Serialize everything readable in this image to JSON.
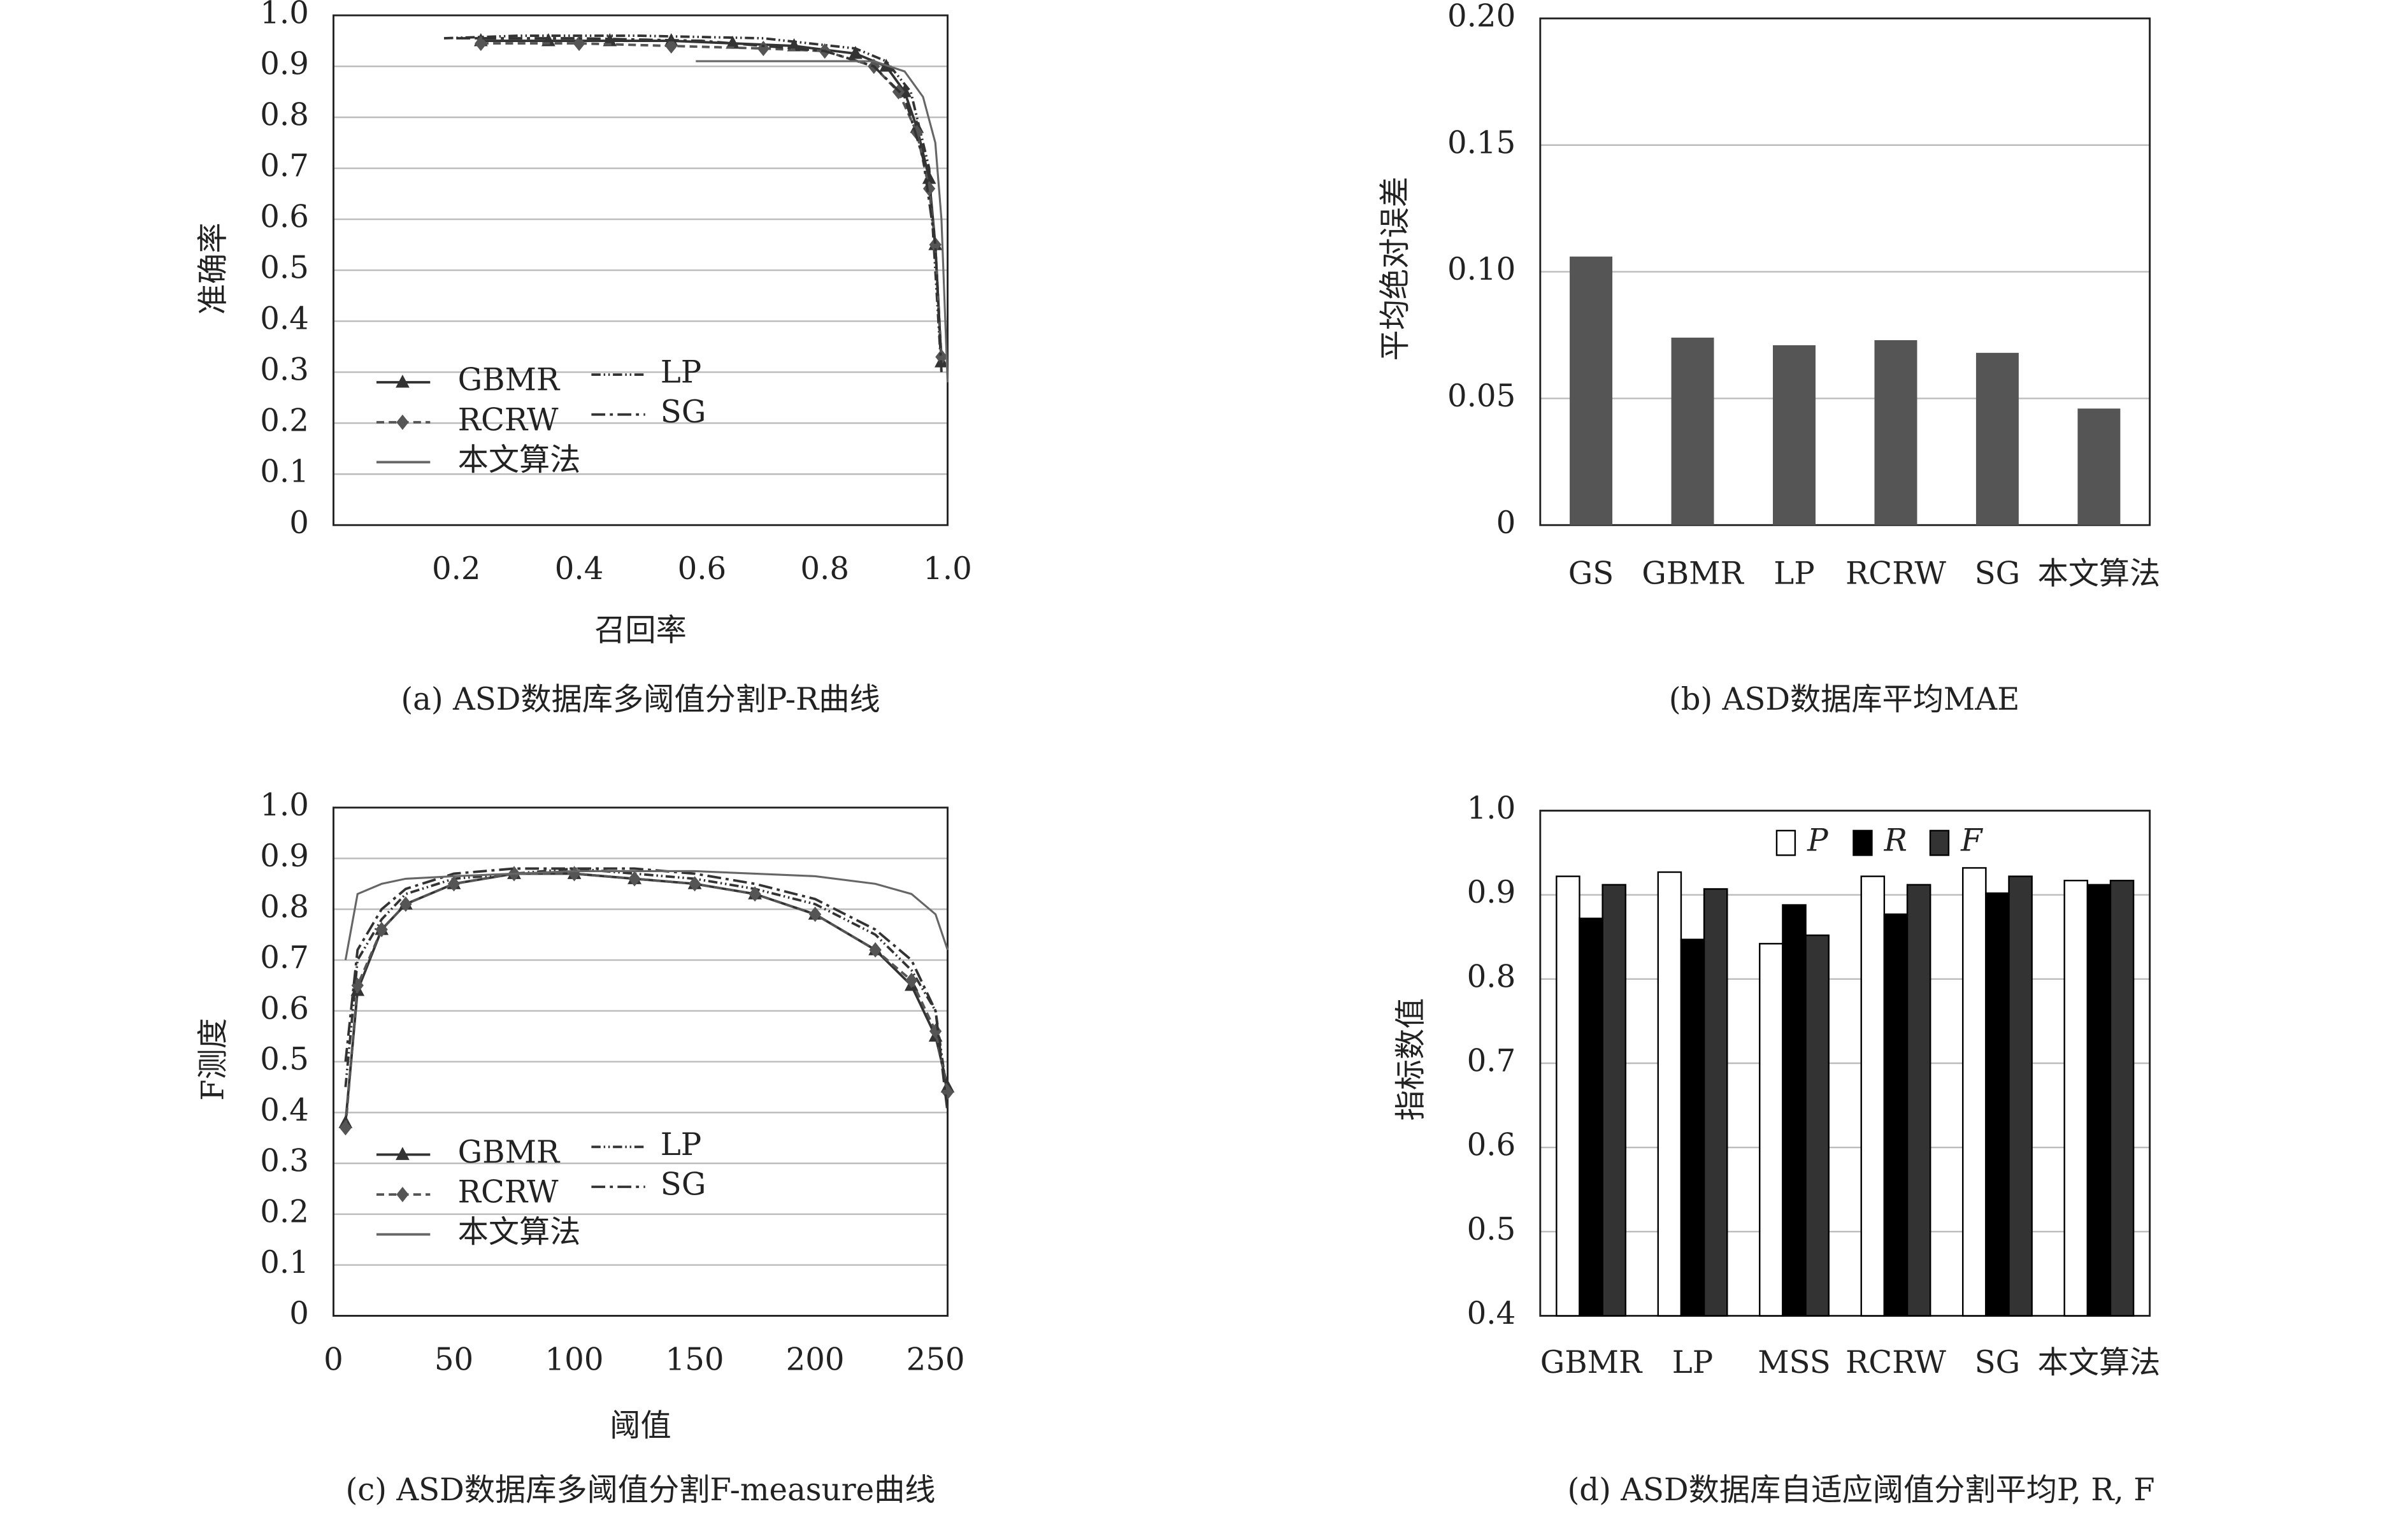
{
  "chart_data": [
    {
      "type": "line",
      "xlabel": "召回率",
      "ylabel": "准确率",
      "caption": "(a) ASD数据库多阈值分割P-R曲线",
      "xlim": [
        0,
        1
      ],
      "ylim": [
        0,
        1
      ],
      "grid": true,
      "xticks": [
        0.2,
        0.4,
        0.6,
        0.8,
        {
          "value": 1,
          "label": "1.0"
        }
      ],
      "yticks": [
        0,
        0.1,
        0.2,
        0.3,
        0.4,
        0.5,
        0.6,
        0.7,
        0.8,
        0.9,
        {
          "value": 1,
          "label": "1.0"
        }
      ],
      "series": [
        {
          "name": "GBMR",
          "color": "#333333",
          "x": [
            0.24,
            0.35,
            0.45,
            0.55,
            0.65,
            0.75,
            0.85,
            0.9,
            0.93,
            0.95,
            0.97,
            0.98,
            0.99
          ],
          "values": [
            0.95,
            0.95,
            0.95,
            0.95,
            0.945,
            0.94,
            0.925,
            0.9,
            0.85,
            0.78,
            0.68,
            0.55,
            0.32
          ]
        },
        {
          "name": "LP",
          "color": "#333333",
          "x": [
            0.18,
            0.3,
            0.5,
            0.7,
            0.85,
            0.9,
            0.94,
            0.97,
            0.99
          ],
          "values": [
            0.955,
            0.96,
            0.96,
            0.955,
            0.935,
            0.91,
            0.85,
            0.7,
            0.3
          ]
        },
        {
          "name": "RCRW",
          "color": "#555555",
          "x": [
            0.24,
            0.4,
            0.55,
            0.7,
            0.8,
            0.88,
            0.92,
            0.95,
            0.97,
            0.98,
            0.99
          ],
          "values": [
            0.945,
            0.945,
            0.94,
            0.935,
            0.93,
            0.9,
            0.85,
            0.77,
            0.66,
            0.55,
            0.33
          ]
        },
        {
          "name": "SG",
          "color": "#333333",
          "x": [
            0.2,
            0.4,
            0.6,
            0.8,
            0.88,
            0.93,
            0.96,
            0.98,
            0.99
          ],
          "values": [
            0.955,
            0.955,
            0.95,
            0.93,
            0.9,
            0.84,
            0.72,
            0.55,
            0.3
          ]
        },
        {
          "name": "本文算法",
          "color": "#666666",
          "x": [
            0.59,
            0.7,
            0.8,
            0.88,
            0.93,
            0.96,
            0.98,
            0.99,
            1
          ],
          "values": [
            0.91,
            0.91,
            0.91,
            0.91,
            0.89,
            0.84,
            0.75,
            0.6,
            0.28
          ]
        }
      ]
    },
    {
      "type": "bar",
      "ylabel": "平均绝对误差",
      "caption": "(b) ASD数据库平均MAE",
      "categories": [
        "GS",
        "GBMR",
        "LP",
        "RCRW",
        "SG",
        "本文算法"
      ],
      "values": [
        0.106,
        0.074,
        0.071,
        0.073,
        0.068,
        0.046
      ],
      "color": "#555555",
      "ylim": [
        0,
        0.2
      ],
      "grid": true,
      "yticks": [
        0,
        0.05,
        {
          "value": 0.1,
          "label": "0.10"
        },
        0.15,
        {
          "value": 0.2,
          "label": "0.20"
        }
      ]
    },
    {
      "type": "line",
      "xlabel": "阈值",
      "ylabel": "F测度",
      "caption": "(c) ASD数据库多阈值分割F-measure曲线",
      "xlim": [
        0,
        255
      ],
      "ylim": [
        0,
        1
      ],
      "grid": true,
      "xticks": [
        0,
        50,
        100,
        150,
        200,
        250
      ],
      "yticks": [
        0,
        0.1,
        0.2,
        0.3,
        0.4,
        0.5,
        0.6,
        0.7,
        0.8,
        0.9,
        {
          "value": 1,
          "label": "1.0"
        }
      ],
      "x": [
        5,
        10,
        20,
        30,
        50,
        75,
        100,
        125,
        150,
        175,
        200,
        225,
        240,
        250,
        255
      ],
      "series": [
        {
          "name": "GBMR",
          "color": "#333333",
          "values": [
            0.38,
            0.64,
            0.76,
            0.81,
            0.85,
            0.87,
            0.87,
            0.86,
            0.85,
            0.83,
            0.79,
            0.72,
            0.65,
            0.55,
            0.45
          ]
        },
        {
          "name": "LP",
          "color": "#333333",
          "values": [
            0.45,
            0.7,
            0.78,
            0.83,
            0.86,
            0.87,
            0.88,
            0.87,
            0.86,
            0.84,
            0.81,
            0.75,
            0.68,
            0.6,
            0.43
          ]
        },
        {
          "name": "RCRW",
          "color": "#555555",
          "values": [
            0.37,
            0.65,
            0.76,
            0.81,
            0.85,
            0.87,
            0.87,
            0.86,
            0.85,
            0.83,
            0.79,
            0.72,
            0.66,
            0.56,
            0.44
          ]
        },
        {
          "name": "SG",
          "color": "#333333",
          "values": [
            0.5,
            0.72,
            0.8,
            0.84,
            0.87,
            0.88,
            0.88,
            0.88,
            0.87,
            0.85,
            0.82,
            0.76,
            0.7,
            0.6,
            0.4
          ]
        },
        {
          "name": "本文算法",
          "color": "#666666",
          "values": [
            0.7,
            0.83,
            0.85,
            0.86,
            0.865,
            0.87,
            0.875,
            0.875,
            0.875,
            0.87,
            0.865,
            0.85,
            0.83,
            0.79,
            0.72
          ]
        }
      ]
    },
    {
      "type": "groupedbar",
      "ylabel": "指标数值",
      "caption": "(d) ASD数据库自适应阈值分割平均P, R, F",
      "categories": [
        "GBMR",
        "LP",
        "MSS",
        "RCRW",
        "SG",
        "本文算法"
      ],
      "ylim": [
        0.4,
        1
      ],
      "grid": true,
      "yticks": [
        0.4,
        0.5,
        0.6,
        0.7,
        0.8,
        0.9,
        {
          "value": 1,
          "label": "1.0"
        }
      ],
      "series": [
        {
          "name": "P",
          "color": "#ffffff",
          "values": [
            0.922,
            0.927,
            0.842,
            0.922,
            0.932,
            0.917
          ]
        },
        {
          "name": "R",
          "color": "#000000",
          "values": [
            0.872,
            0.847,
            0.888,
            0.877,
            0.902,
            0.912
          ]
        },
        {
          "name": "F",
          "color": "#333333",
          "values": [
            0.912,
            0.907,
            0.852,
            0.912,
            0.922,
            0.917
          ]
        }
      ]
    }
  ]
}
